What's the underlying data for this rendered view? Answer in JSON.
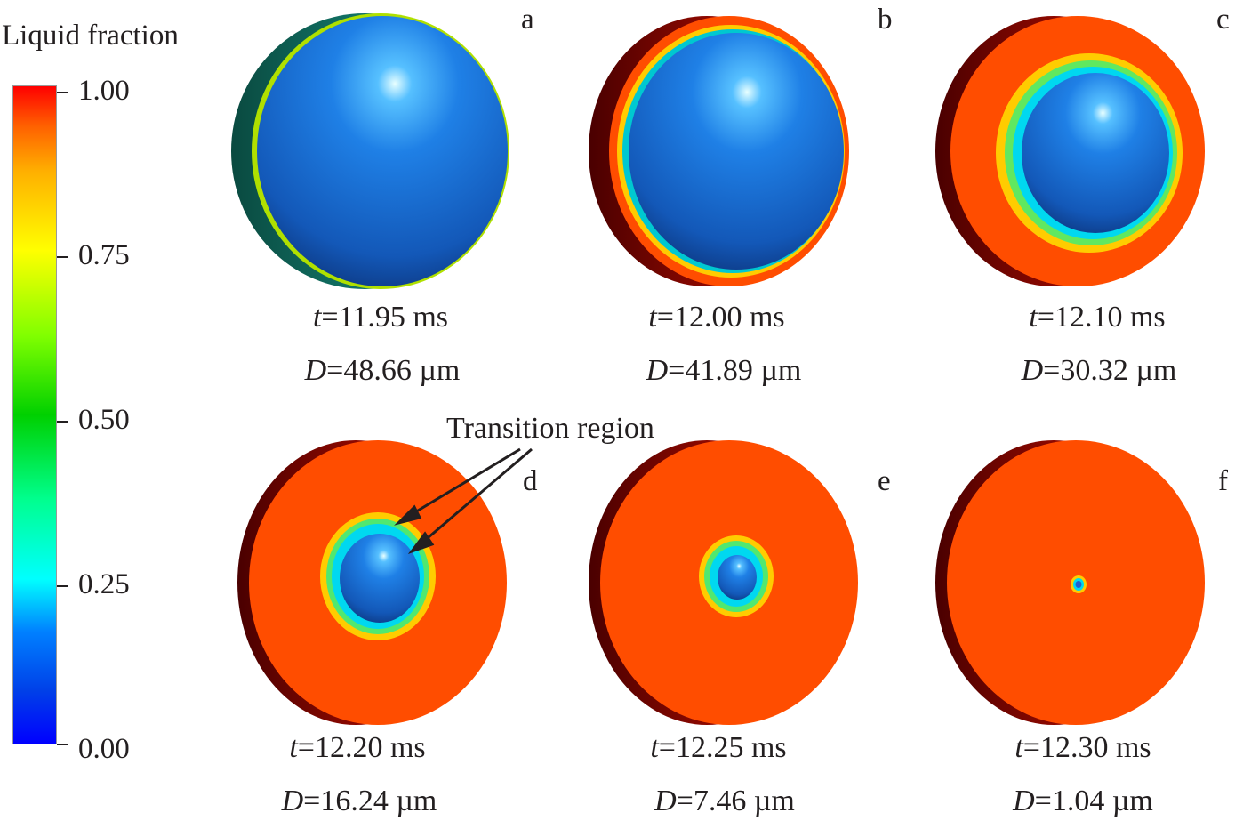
{
  "colorbar": {
    "title": "Liquid fraction",
    "ticks": [
      "1.00",
      "0.75",
      "0.50",
      "0.25",
      "0.00"
    ]
  },
  "annotation": "Transition region",
  "panels": [
    {
      "label": "a",
      "t_var": "t",
      "t_value": "=11.95 ms",
      "d_var": "D",
      "d_value": "=48.66 µm"
    },
    {
      "label": "b",
      "t_var": "t",
      "t_value": "=12.00 ms",
      "d_var": "D",
      "d_value": "=41.89 µm"
    },
    {
      "label": "c",
      "t_var": "t",
      "t_value": "=12.10 ms",
      "d_var": "D",
      "d_value": "=30.32 µm"
    },
    {
      "label": "d",
      "t_var": "t",
      "t_value": "=12.20 ms",
      "d_var": "D",
      "d_value": "=16.24 µm"
    },
    {
      "label": "e",
      "t_var": "t",
      "t_value": "=12.25 ms",
      "d_var": "D",
      "d_value": "=7.46 µm"
    },
    {
      "label": "f",
      "t_var": "t",
      "t_value": "=12.30 ms",
      "d_var": "D",
      "d_value": "=1.04 µm"
    }
  ],
  "colors": {
    "liquid": "#ff4d00",
    "solid": "#1f78e0",
    "rim_dark": "#8a0000"
  }
}
